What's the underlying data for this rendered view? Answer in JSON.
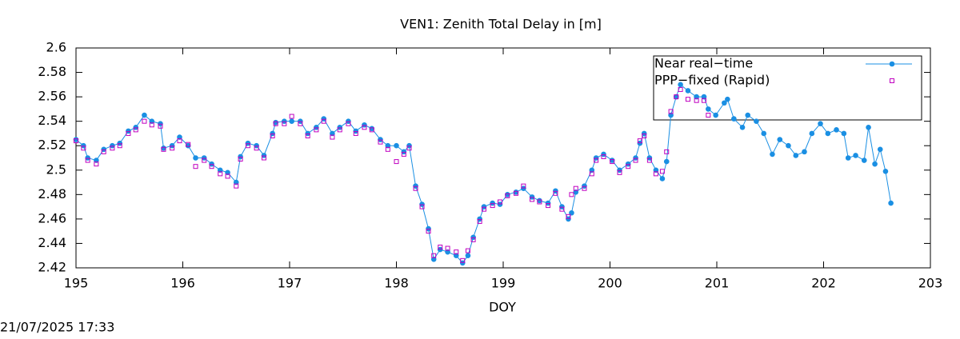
{
  "chart_data": {
    "type": "line",
    "title": "VEN1: Zenith Total Delay in [m]",
    "x_label": "DOY",
    "timestamp": "21/07/2025 17:33",
    "legend_position": "upper right",
    "x": [
      195.0,
      195.07,
      195.11,
      195.19,
      195.26,
      195.34,
      195.41,
      195.49,
      195.56,
      195.64,
      195.71,
      195.79,
      195.82,
      195.9,
      195.97,
      196.05,
      196.12,
      196.2,
      196.27,
      196.35,
      196.42,
      196.5,
      196.54,
      196.61,
      196.69,
      196.76,
      196.84,
      196.87,
      196.95,
      197.02,
      197.1,
      197.17,
      197.25,
      197.32,
      197.4,
      197.47,
      197.55,
      197.62,
      197.7,
      197.77,
      197.85,
      197.92,
      198.0,
      198.07,
      198.12,
      198.18,
      198.24,
      198.3,
      198.35,
      198.41,
      198.48,
      198.56,
      198.62,
      198.67,
      198.72,
      198.78,
      198.82,
      198.9,
      198.97,
      199.04,
      199.12,
      199.19,
      199.27,
      199.34,
      199.42,
      199.49,
      199.55,
      199.61,
      199.64,
      199.68,
      199.76,
      199.83,
      199.87,
      199.94,
      200.02,
      200.09,
      200.17,
      200.24,
      200.28,
      200.32,
      200.37,
      200.43,
      200.49,
      200.53,
      200.57,
      200.62,
      200.66,
      200.73,
      200.81,
      200.88,
      200.92,
      200.99,
      201.07,
      201.1,
      201.16,
      201.24,
      201.29,
      201.37,
      201.44,
      201.52,
      201.59,
      201.67,
      201.74,
      201.82,
      201.89,
      201.97,
      202.04,
      202.12,
      202.19,
      202.23,
      202.3,
      202.38,
      202.42,
      202.48,
      202.53,
      202.58,
      202.63
    ],
    "series": [
      {
        "name": "Near real−time",
        "color": "#1a8fe3",
        "marker": "circle",
        "line": true,
        "values": [
          2.525,
          2.52,
          2.51,
          2.508,
          2.517,
          2.52,
          2.522,
          2.532,
          2.535,
          2.545,
          2.54,
          2.538,
          2.518,
          2.52,
          2.527,
          2.52,
          2.51,
          2.51,
          2.505,
          2.5,
          2.498,
          2.49,
          2.511,
          2.522,
          2.52,
          2.512,
          2.53,
          2.539,
          2.54,
          2.54,
          2.54,
          2.53,
          2.535,
          2.542,
          2.53,
          2.535,
          2.54,
          2.532,
          2.537,
          2.534,
          2.525,
          2.52,
          2.52,
          2.515,
          2.52,
          2.487,
          2.472,
          2.452,
          2.427,
          2.435,
          2.433,
          2.43,
          2.424,
          2.43,
          2.445,
          2.46,
          2.47,
          2.473,
          2.472,
          2.48,
          2.482,
          2.485,
          2.478,
          2.475,
          2.473,
          2.483,
          2.47,
          2.46,
          2.465,
          2.482,
          2.487,
          2.5,
          2.51,
          2.513,
          2.508,
          2.5,
          2.505,
          2.51,
          2.522,
          2.53,
          2.51,
          2.5,
          2.493,
          2.507,
          2.545,
          2.56,
          2.57,
          2.565,
          2.56,
          2.56,
          2.55,
          2.545,
          2.555,
          2.558,
          2.542,
          2.535,
          2.545,
          2.54,
          2.53,
          2.513,
          2.525,
          2.52,
          2.512,
          2.515,
          2.53,
          2.538,
          2.53,
          2.533,
          2.53,
          2.51,
          2.512,
          2.508,
          2.535,
          2.505,
          2.517,
          2.499,
          2.473
        ]
      },
      {
        "name": "PPP−fixed (Rapid)",
        "color": "#c000c0",
        "marker": "square",
        "line": false,
        "values": [
          2.524,
          2.518,
          2.508,
          2.505,
          2.515,
          2.518,
          2.52,
          2.53,
          2.533,
          2.54,
          2.537,
          2.536,
          2.517,
          2.518,
          2.524,
          2.521,
          2.503,
          2.508,
          2.503,
          2.497,
          2.495,
          2.487,
          2.509,
          2.52,
          2.518,
          2.51,
          2.528,
          2.538,
          2.538,
          2.544,
          2.538,
          2.528,
          2.533,
          2.54,
          2.527,
          2.533,
          2.538,
          2.53,
          2.535,
          2.533,
          2.523,
          2.517,
          2.507,
          2.513,
          2.518,
          2.485,
          2.47,
          2.45,
          2.43,
          2.437,
          2.436,
          2.433,
          2.426,
          2.434,
          2.443,
          2.458,
          2.468,
          2.471,
          2.474,
          2.479,
          2.481,
          2.487,
          2.476,
          2.474,
          2.471,
          2.481,
          2.468,
          2.462,
          2.48,
          2.485,
          2.485,
          2.497,
          2.508,
          2.511,
          2.507,
          2.498,
          2.503,
          2.508,
          2.524,
          2.528,
          2.508,
          2.497,
          2.499,
          2.515,
          2.548,
          2.56,
          2.566,
          2.558,
          2.557,
          2.557,
          2.545,
          null,
          null,
          null,
          null,
          null,
          null,
          null,
          null,
          null,
          null,
          null,
          null,
          null,
          null,
          null,
          null,
          null,
          null,
          null,
          null,
          null,
          null,
          null,
          null,
          null,
          null
        ]
      }
    ],
    "xlim": [
      195,
      203
    ],
    "xticks": [
      195,
      196,
      197,
      198,
      199,
      200,
      201,
      202,
      203
    ],
    "ylim": [
      2.42,
      2.6
    ],
    "yticks": [
      2.42,
      2.44,
      2.46,
      2.48,
      2.5,
      2.52,
      2.54,
      2.56,
      2.58,
      2.6
    ]
  }
}
